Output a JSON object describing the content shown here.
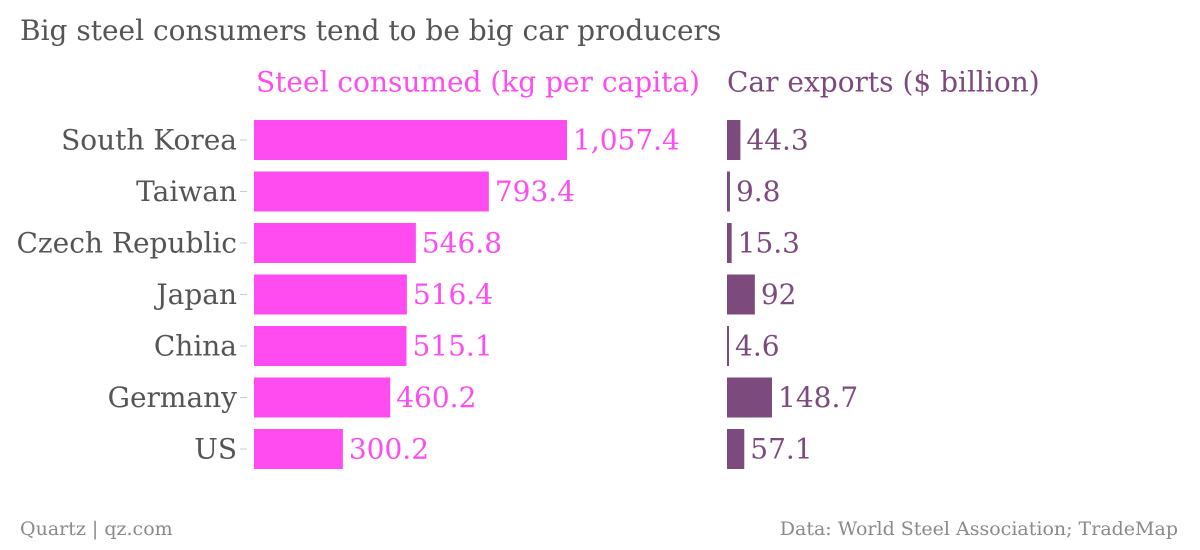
{
  "title": "Big steel consumers tend to be big car producers",
  "footer": {
    "source_left": "Quartz | qz.com",
    "source_right": "Data: World Steel Association; TradeMap"
  },
  "colors": {
    "steel": "#ff4cf0",
    "cars": "#7d4a7d",
    "category_text": "#555555",
    "muted_text": "#8a8a8a"
  },
  "chart_data": [
    {
      "type": "bar",
      "orientation": "horizontal",
      "title": "Steel consumed (kg per capita)",
      "categories": [
        "South Korea",
        "Taiwan",
        "Czech Republic",
        "Japan",
        "China",
        "Germany",
        "US"
      ],
      "values": [
        1057.4,
        793.4,
        546.8,
        516.4,
        515.1,
        460.2,
        300.2
      ],
      "value_labels": [
        "1,057.4",
        "793.4",
        "546.8",
        "516.4",
        "515.1",
        "460.2",
        "300.2"
      ],
      "xlim": [
        0,
        1057.4
      ],
      "grid": false,
      "color": "#ff4cf0"
    },
    {
      "type": "bar",
      "orientation": "horizontal",
      "title": "Car exports ($ billion)",
      "categories": [
        "South Korea",
        "Taiwan",
        "Czech Republic",
        "Japan",
        "China",
        "Germany",
        "US"
      ],
      "values": [
        44.3,
        9.8,
        15.3,
        92,
        4.6,
        148.7,
        57.1
      ],
      "value_labels": [
        "44.3",
        "9.8",
        "15.3",
        "92",
        "4.6",
        "148.7",
        "57.1"
      ],
      "xlim": [
        0,
        148.7
      ],
      "grid": false,
      "color": "#7d4a7d"
    }
  ]
}
